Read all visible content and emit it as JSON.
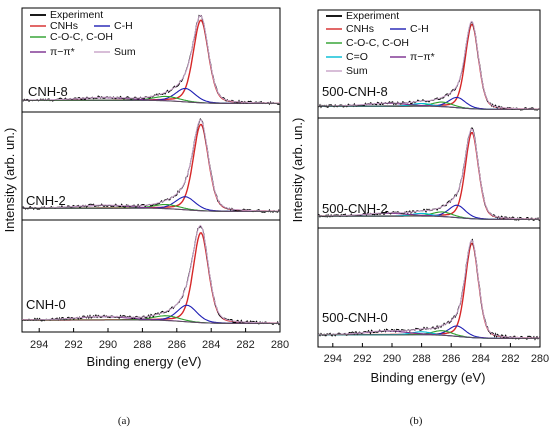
{
  "chart_data": [
    {
      "type": "line",
      "panel_caption": "(a)",
      "xlabel": "Binding energy (eV)",
      "ylabel": "Intensity (arb. un.)",
      "xlim": [
        295,
        280
      ],
      "x_ticks": [
        294,
        292,
        290,
        288,
        286,
        284,
        282,
        280
      ],
      "legend": [
        {
          "label": "Experiment",
          "color": "#000000"
        },
        {
          "label": "CNHs",
          "color": "#d62728"
        },
        {
          "label": "C-H",
          "color": "#1f1fb4"
        },
        {
          "label": "C-O-C, C-OH",
          "color": "#2ca02c"
        },
        {
          "label": "π−π*",
          "color": "#7b2d8e"
        },
        {
          "label": "Sum",
          "color": "#c8a2c8"
        }
      ],
      "subplots": [
        {
          "sample": "CNH-8",
          "components": [
            {
              "name": "CNHs",
              "center": 284.6,
              "height": 0.92,
              "fwhm": 1.05,
              "color": "#d62728"
            },
            {
              "name": "C-H",
              "center": 285.5,
              "height": 0.15,
              "fwhm": 1.35,
              "color": "#1f1fb4"
            },
            {
              "name": "C-O-C, C-OH",
              "center": 286.6,
              "height": 0.05,
              "fwhm": 1.8,
              "color": "#2ca02c"
            },
            {
              "name": "π−π*",
              "center": 290.3,
              "height": 0.03,
              "fwhm": 3.5,
              "color": "#7b2d8e"
            }
          ]
        },
        {
          "sample": "CNH-2",
          "components": [
            {
              "name": "CNHs",
              "center": 284.6,
              "height": 0.92,
              "fwhm": 1.05,
              "color": "#d62728"
            },
            {
              "name": "C-H",
              "center": 285.5,
              "height": 0.14,
              "fwhm": 1.35,
              "color": "#1f1fb4"
            },
            {
              "name": "C-O-C, C-OH",
              "center": 286.6,
              "height": 0.045,
              "fwhm": 1.8,
              "color": "#2ca02c"
            },
            {
              "name": "π−π*",
              "center": 290.3,
              "height": 0.03,
              "fwhm": 3.5,
              "color": "#7b2d8e"
            }
          ]
        },
        {
          "sample": "CNH-0",
          "components": [
            {
              "name": "CNHs",
              "center": 284.6,
              "height": 0.92,
              "fwhm": 1.05,
              "color": "#d62728"
            },
            {
              "name": "C-H",
              "center": 285.4,
              "height": 0.17,
              "fwhm": 1.35,
              "color": "#1f1fb4"
            },
            {
              "name": "C-O-C, C-OH",
              "center": 286.6,
              "height": 0.05,
              "fwhm": 1.8,
              "color": "#2ca02c"
            },
            {
              "name": "π−π*",
              "center": 290.3,
              "height": 0.035,
              "fwhm": 3.5,
              "color": "#7b2d8e"
            }
          ]
        }
      ]
    },
    {
      "type": "line",
      "panel_caption": "(b)",
      "xlabel": "Binding energy (eV)",
      "ylabel": "Intensity (arb. un.)",
      "xlim": [
        295,
        280
      ],
      "x_ticks": [
        294,
        292,
        290,
        288,
        286,
        284,
        282,
        280
      ],
      "legend": [
        {
          "label": "Experiment",
          "color": "#000000"
        },
        {
          "label": "CNHs",
          "color": "#d62728"
        },
        {
          "label": "C-H",
          "color": "#1f1fb4"
        },
        {
          "label": "C-O-C, C-OH",
          "color": "#2ca02c"
        },
        {
          "label": "C=O",
          "color": "#00bcd4"
        },
        {
          "label": "π−π*",
          "color": "#7b2d8e"
        },
        {
          "label": "Sum",
          "color": "#c8a2c8"
        }
      ],
      "subplots": [
        {
          "sample": "500-CNH-8",
          "components": [
            {
              "name": "CNHs",
              "center": 284.6,
              "height": 0.9,
              "fwhm": 1.05,
              "color": "#d62728"
            },
            {
              "name": "C-H",
              "center": 285.6,
              "height": 0.11,
              "fwhm": 1.35,
              "color": "#1f1fb4"
            },
            {
              "name": "C-O-C, C-OH",
              "center": 286.6,
              "height": 0.05,
              "fwhm": 1.6,
              "color": "#2ca02c"
            },
            {
              "name": "C=O",
              "center": 288.0,
              "height": 0.03,
              "fwhm": 1.6,
              "color": "#00bcd4"
            },
            {
              "name": "π−π*",
              "center": 290.3,
              "height": 0.03,
              "fwhm": 3.5,
              "color": "#7b2d8e"
            }
          ]
        },
        {
          "sample": "500-CNH-2",
          "components": [
            {
              "name": "CNHs",
              "center": 284.6,
              "height": 0.9,
              "fwhm": 1.05,
              "color": "#d62728"
            },
            {
              "name": "C-H",
              "center": 285.6,
              "height": 0.13,
              "fwhm": 1.35,
              "color": "#1f1fb4"
            },
            {
              "name": "C-O-C, C-OH",
              "center": 286.6,
              "height": 0.05,
              "fwhm": 1.6,
              "color": "#2ca02c"
            },
            {
              "name": "C=O",
              "center": 288.0,
              "height": 0.03,
              "fwhm": 1.6,
              "color": "#00bcd4"
            },
            {
              "name": "π−π*",
              "center": 290.3,
              "height": 0.03,
              "fwhm": 3.5,
              "color": "#7b2d8e"
            }
          ]
        },
        {
          "sample": "500-CNH-0",
          "components": [
            {
              "name": "CNHs",
              "center": 284.6,
              "height": 0.9,
              "fwhm": 1.05,
              "color": "#d62728"
            },
            {
              "name": "C-H",
              "center": 285.6,
              "height": 0.1,
              "fwhm": 1.35,
              "color": "#1f1fb4"
            },
            {
              "name": "C-O-C, C-OH",
              "center": 286.6,
              "height": 0.045,
              "fwhm": 1.6,
              "color": "#2ca02c"
            },
            {
              "name": "C=O",
              "center": 288.0,
              "height": 0.03,
              "fwhm": 1.6,
              "color": "#00bcd4"
            },
            {
              "name": "π−π*",
              "center": 290.3,
              "height": 0.035,
              "fwhm": 3.5,
              "color": "#7b2d8e"
            }
          ]
        }
      ]
    }
  ]
}
